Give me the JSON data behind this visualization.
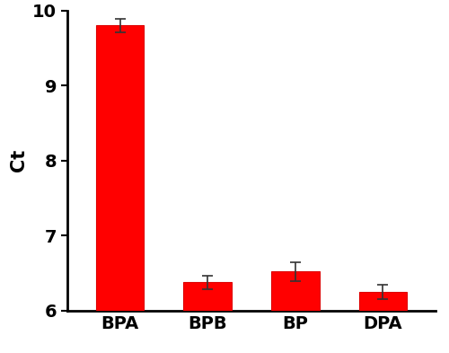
{
  "categories": [
    "BPA",
    "BPB",
    "BP",
    "DPA"
  ],
  "values": [
    9.8,
    6.38,
    6.52,
    6.25
  ],
  "errors": [
    0.09,
    0.09,
    0.13,
    0.1
  ],
  "bar_color": "#ff0000",
  "bar_edge_color": "#dd0000",
  "ylabel": "Ct",
  "ylim": [
    6,
    10
  ],
  "yticks": [
    6,
    7,
    8,
    9,
    10
  ],
  "bar_width": 0.55,
  "background_color": "#ffffff",
  "error_capsize": 4,
  "error_color": "#333333",
  "error_linewidth": 1.2,
  "ylabel_fontsize": 15,
  "tick_fontsize": 14,
  "xlabel_fontsize": 14,
  "spine_linewidth": 2.0
}
